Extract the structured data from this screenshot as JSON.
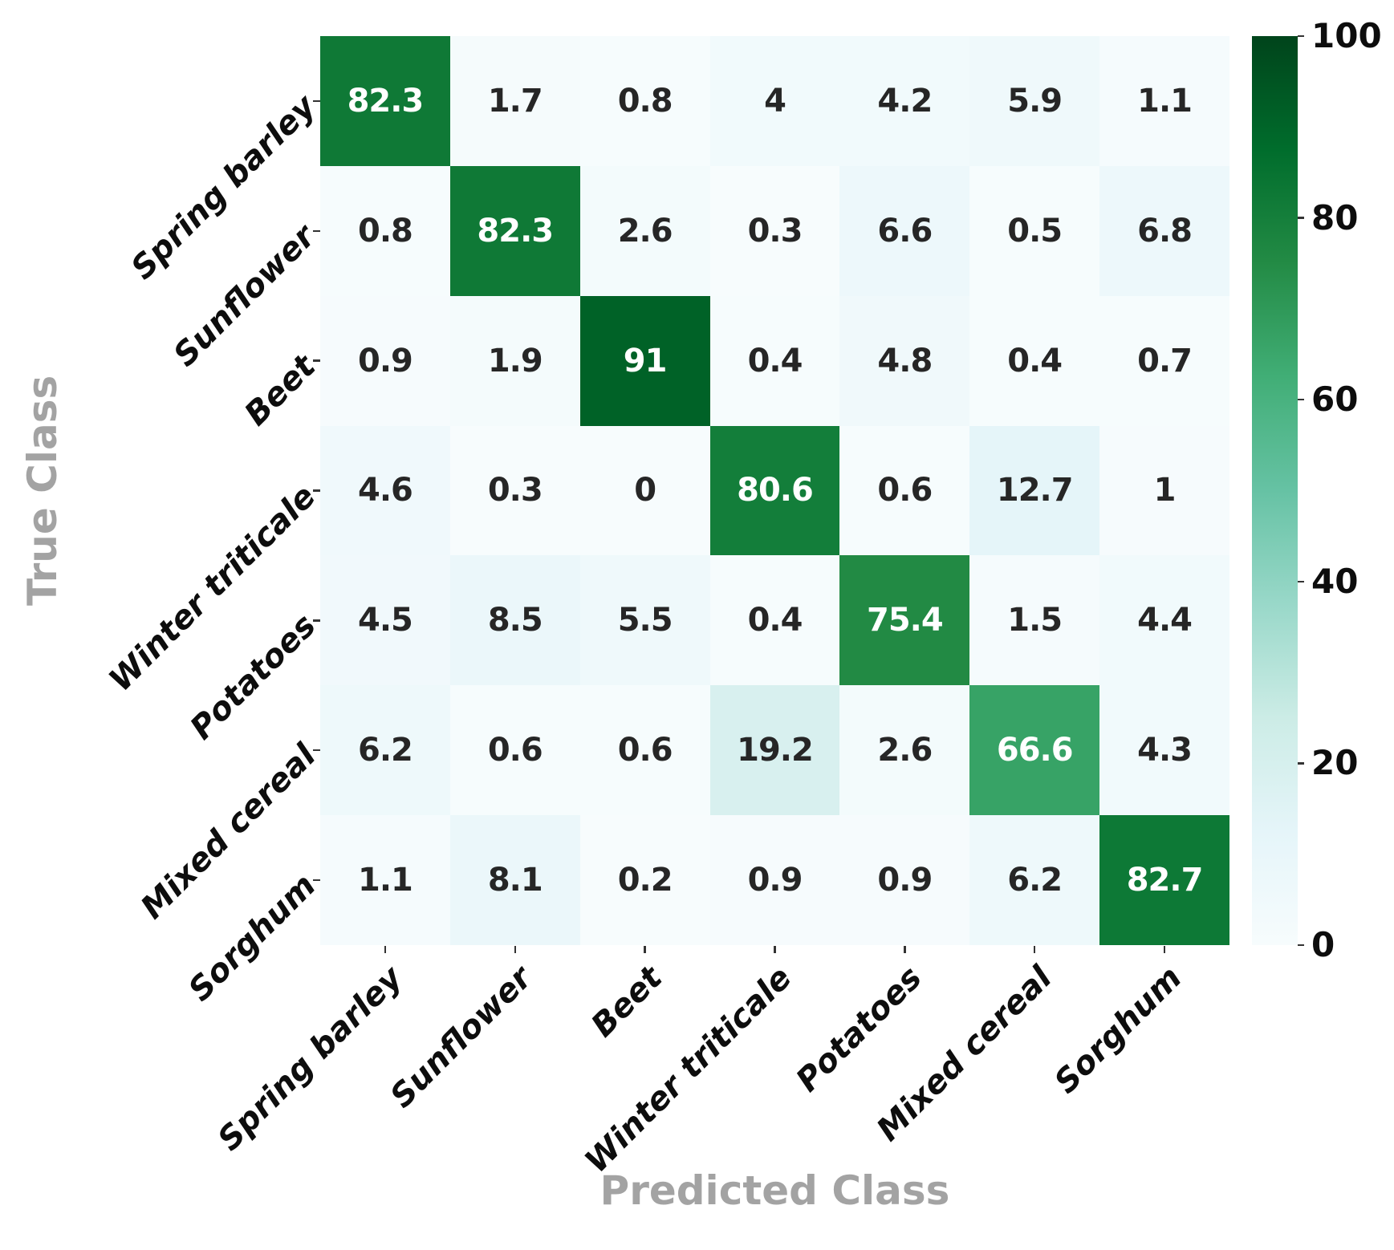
{
  "chart_data": {
    "type": "heatmap",
    "title": "",
    "xlabel": "Predicted Class",
    "ylabel": "True Class",
    "categories": [
      "Spring barley",
      "Sunflower",
      "Beet",
      "Winter triticale",
      "Potatoes",
      "Mixed cereal",
      "Sorghum"
    ],
    "matrix": [
      [
        82.3,
        1.7,
        0.8,
        4,
        4.2,
        5.9,
        1.1
      ],
      [
        0.8,
        82.3,
        2.6,
        0.3,
        6.6,
        0.5,
        6.8
      ],
      [
        0.9,
        1.9,
        91,
        0.4,
        4.8,
        0.4,
        0.7
      ],
      [
        4.6,
        0.3,
        0,
        80.6,
        0.6,
        12.7,
        1
      ],
      [
        4.5,
        8.5,
        5.5,
        0.4,
        75.4,
        1.5,
        4.4
      ],
      [
        6.2,
        0.6,
        0.6,
        19.2,
        2.6,
        66.6,
        4.3
      ],
      [
        1.1,
        8.1,
        0.2,
        0.9,
        0.9,
        6.2,
        82.7
      ]
    ],
    "vmin": 0,
    "vmax": 100,
    "colorbar_ticks": [
      100,
      80,
      60,
      40,
      20,
      0
    ],
    "colormap_name": "BuGn",
    "colormap_stops": [
      "#f7fcfd",
      "#e5f5f9",
      "#ccece6",
      "#99d8c9",
      "#66c2a4",
      "#41ae76",
      "#238b45",
      "#006d2c",
      "#00441b"
    ],
    "annotation_color_light_bg": "#262626",
    "annotation_color_dark_bg": "#ffffff",
    "axis_title_color": "#a3a3a3",
    "tick_label_color": "#0d0d0d",
    "legend_position": "right-colorbar",
    "grid": false
  }
}
